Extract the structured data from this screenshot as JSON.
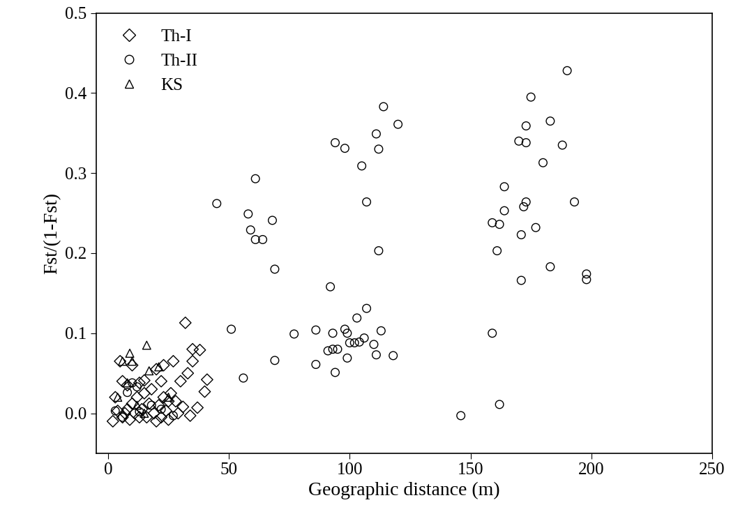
{
  "chart_data": {
    "type": "scatter",
    "x_label": "Geographic distance (m)",
    "y_label": "Fst/(1-Fst)",
    "xlim": [
      -5,
      250
    ],
    "xticks": [
      0,
      50,
      100,
      150,
      200,
      250
    ],
    "ylim": [
      -0.05,
      0.5
    ],
    "yticks": [
      {
        "value": 0.0,
        "label": "0.0"
      },
      {
        "value": 0.1,
        "label": "0.1"
      },
      {
        "value": 0.2,
        "label": "0.2"
      },
      {
        "value": 0.3,
        "label": "0.3"
      },
      {
        "value": 0.4,
        "label": "0.4"
      },
      {
        "value": 0.5,
        "label": "0.5"
      }
    ],
    "legend": "upper left",
    "grid": false,
    "series": [
      {
        "name": "Th-I",
        "color": "#000000",
        "marker": "diamond",
        "x": [
          2,
          3,
          4,
          5,
          6,
          6,
          7,
          8,
          8,
          9,
          10,
          10,
          11,
          12,
          13,
          13,
          14,
          15,
          15,
          16,
          17,
          18,
          19,
          20,
          20,
          21,
          22,
          22,
          23,
          23,
          24,
          25,
          25,
          26,
          27,
          28,
          30,
          31,
          32,
          33,
          34,
          35,
          37,
          38,
          40,
          41,
          35,
          29
        ],
        "values": [
          -0.01,
          0.02,
          0.003,
          0.065,
          0.04,
          -0.005,
          0.0,
          0.035,
          0.005,
          -0.008,
          0.012,
          0.06,
          0.0,
          0.02,
          -0.005,
          0.038,
          0.005,
          0.025,
          0.041,
          -0.005,
          0.012,
          0.03,
          0.0,
          0.055,
          -0.01,
          0.01,
          0.04,
          -0.005,
          0.02,
          0.06,
          0.003,
          0.015,
          -0.008,
          0.025,
          0.065,
          0.015,
          0.04,
          0.008,
          0.113,
          0.05,
          -0.003,
          0.08,
          0.007,
          0.079,
          0.027,
          0.042,
          0.065,
          0.0
        ]
      },
      {
        "name": "Th-II",
        "color": "#000000",
        "marker": "circle",
        "x": [
          3,
          6,
          8,
          10,
          12,
          13,
          18,
          22,
          27,
          45,
          51,
          56,
          58,
          59,
          61,
          61,
          64,
          68,
          69,
          69,
          77,
          86,
          86,
          91,
          92,
          93,
          93,
          94,
          94,
          95,
          98,
          98,
          99,
          99,
          100,
          102,
          103,
          104,
          105,
          106,
          107,
          107,
          110,
          111,
          111,
          112,
          112,
          113,
          114,
          118,
          120,
          146,
          159,
          159,
          161,
          162,
          162,
          164,
          164,
          170,
          171,
          171,
          172,
          173,
          173,
          173,
          175,
          177,
          180,
          183,
          183,
          188,
          190,
          193,
          198,
          198
        ],
        "values": [
          0.003,
          -0.005,
          0.026,
          0.038,
          0.033,
          0.002,
          0.01,
          0.005,
          -0.003,
          0.262,
          0.105,
          0.044,
          0.249,
          0.229,
          0.217,
          0.293,
          0.217,
          0.241,
          0.18,
          0.066,
          0.099,
          0.104,
          0.061,
          0.078,
          0.158,
          0.1,
          0.08,
          0.051,
          0.338,
          0.08,
          0.331,
          0.105,
          0.1,
          0.069,
          0.088,
          0.088,
          0.119,
          0.089,
          0.309,
          0.094,
          0.264,
          0.131,
          0.086,
          0.073,
          0.349,
          0.33,
          0.203,
          0.103,
          0.383,
          0.072,
          0.361,
          -0.003,
          0.1,
          0.238,
          0.203,
          0.011,
          0.236,
          0.283,
          0.253,
          0.34,
          0.166,
          0.223,
          0.258,
          0.338,
          0.359,
          0.264,
          0.395,
          0.232,
          0.313,
          0.365,
          0.183,
          0.335,
          0.428,
          0.264,
          0.174,
          0.167
        ]
      },
      {
        "name": "KS",
        "color": "#000000",
        "marker": "triangle",
        "x": [
          4,
          6,
          8,
          9,
          10,
          16,
          17,
          21,
          12,
          15,
          25
        ],
        "values": [
          0.02,
          0.065,
          0.038,
          0.075,
          0.065,
          0.085,
          0.053,
          0.058,
          0.01,
          0.0,
          0.02
        ]
      }
    ]
  }
}
